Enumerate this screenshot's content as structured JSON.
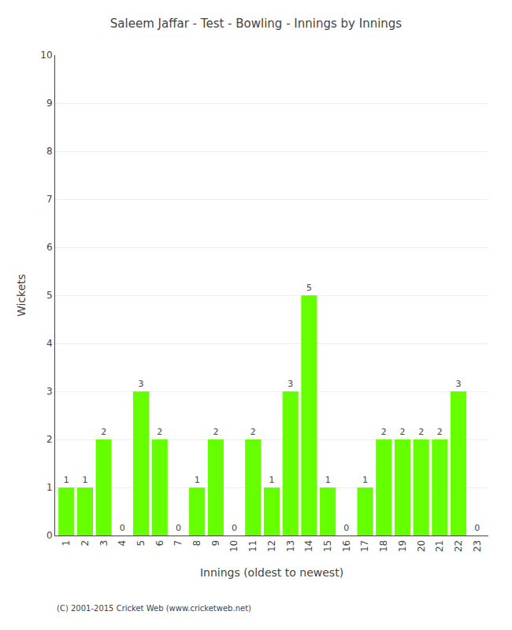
{
  "chart_data": {
    "type": "bar",
    "title": "Saleem Jaffar - Test - Bowling - Innings by Innings",
    "x_label": "Innings (oldest to newest)",
    "y_label": "Wickets",
    "x": [
      1,
      2,
      3,
      4,
      5,
      6,
      7,
      8,
      9,
      10,
      11,
      12,
      13,
      14,
      15,
      16,
      17,
      18,
      19,
      20,
      21,
      22,
      23
    ],
    "values": [
      1,
      1,
      2,
      0,
      3,
      2,
      0,
      1,
      2,
      0,
      2,
      1,
      3,
      5,
      1,
      0,
      1,
      2,
      2,
      2,
      2,
      3,
      0
    ],
    "color": "#66ff00",
    "xlim": [
      0.4,
      23.6
    ],
    "xticks": [
      1,
      2,
      3,
      4,
      5,
      6,
      7,
      8,
      9,
      10,
      11,
      12,
      13,
      14,
      15,
      16,
      17,
      18,
      19,
      20,
      21,
      22,
      23
    ],
    "ylim": [
      0,
      10
    ],
    "yticks": [
      0,
      1,
      2,
      3,
      4,
      5,
      6,
      7,
      8,
      9,
      10
    ],
    "grid": true,
    "data_labels": true,
    "annotations": [
      "(C) 2001-2015 Cricket Web (www.cricketweb.net)"
    ]
  }
}
